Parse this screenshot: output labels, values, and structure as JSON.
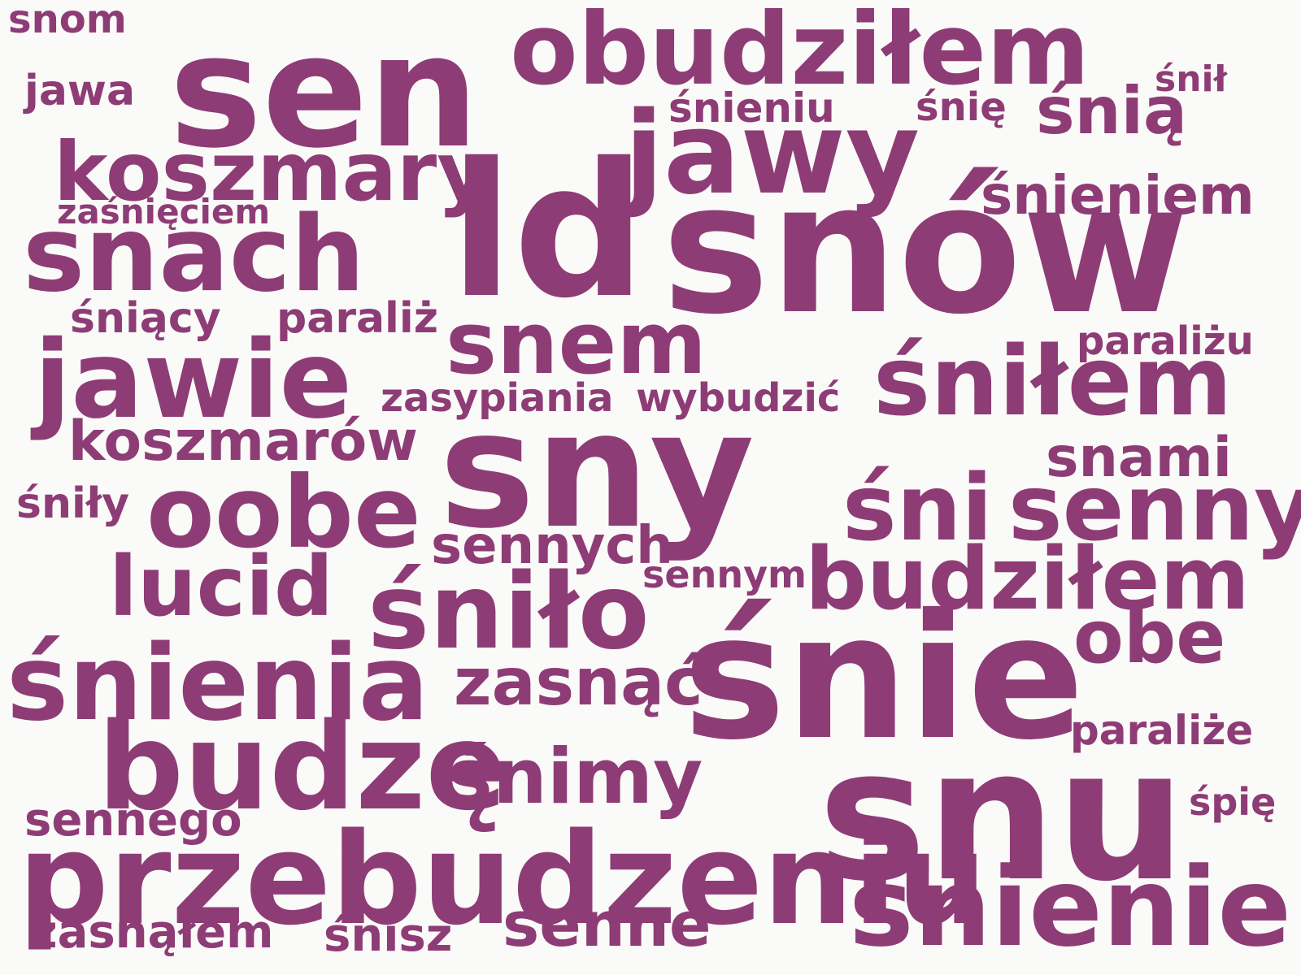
{
  "color": "#8e3c76",
  "background": "#fafaf8",
  "words": [
    "snom",
    "sen",
    "obudziłem",
    "jawa",
    "śnił",
    "śnieniu",
    "śnię",
    "śnią",
    "jawy",
    "koszmary",
    "ld",
    "śnieniem",
    "zaśnięciem",
    "snach",
    "snów",
    "śniący",
    "paraliż",
    "snem",
    "paraliżu",
    "jawie",
    "zasypiania",
    "wybudzić",
    "śniłem",
    "koszmarów",
    "sny",
    "snami",
    "śniły",
    "oobe",
    "śni",
    "senny",
    "sennych",
    "sennym",
    "lucid",
    "budziłem",
    "śniło",
    "obe",
    "śnienia",
    "zasnąć",
    "śnie",
    "paraliże",
    "budzę",
    "śnimy",
    "śpię",
    "sennego",
    "snu",
    "przebudzeniu",
    "śnienie",
    "senne",
    "zasnąłem",
    "śnisz"
  ]
}
